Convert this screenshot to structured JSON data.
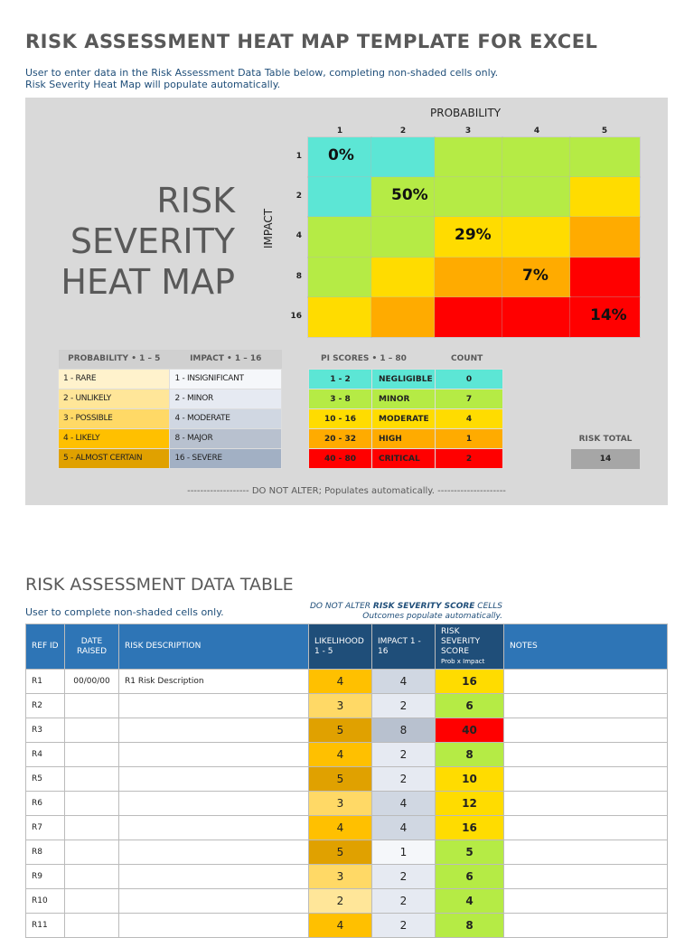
{
  "title": "RISK ASSESSMENT HEAT MAP TEMPLATE FOR EXCEL",
  "intro": [
    "User to enter data in the Risk Assessment Data Table below, completing non-shaded cells only.",
    "Risk Severity Heat Map will populate automatically."
  ],
  "heatmap": {
    "title_lines": [
      "RISK",
      "SEVERITY",
      "HEAT MAP"
    ],
    "x_label": "PROBABILITY",
    "y_label": "IMPACT",
    "probability": [
      "1",
      "2",
      "3",
      "4",
      "5"
    ],
    "impact": [
      "1",
      "2",
      "4",
      "8",
      "16"
    ],
    "colors": {
      "negligible": "#5ce6d5",
      "minor": "#b5eb45",
      "moderate": "#ffdc00",
      "high": "#ffab00",
      "critical": "#ff0000"
    },
    "grid": [
      [
        "negligible",
        "negligible",
        "minor",
        "minor",
        "minor"
      ],
      [
        "negligible",
        "minor",
        "minor",
        "minor",
        "moderate"
      ],
      [
        "minor",
        "minor",
        "moderate",
        "moderate",
        "high"
      ],
      [
        "minor",
        "moderate",
        "high",
        "high",
        "critical"
      ],
      [
        "moderate",
        "high",
        "critical",
        "critical",
        "critical"
      ]
    ],
    "percentages": [
      {
        "row": 0,
        "col": 0,
        "text": "0%"
      },
      {
        "row": 1,
        "col": 1,
        "text": "50%"
      },
      {
        "row": 2,
        "col": 2,
        "text": "29%"
      },
      {
        "row": 3,
        "col": 3,
        "text": "7%"
      },
      {
        "row": 4,
        "col": 4,
        "text": "14%"
      }
    ]
  },
  "legend": {
    "prob_header": "PROBABILITY  •  1 – 5",
    "impact_header": "IMPACT  •  1 – 16",
    "rows": [
      {
        "prob": "1 - RARE",
        "impact": "1 - INSIGNIFICANT",
        "pc": "#fff2cc",
        "ic": "#f5f7fa"
      },
      {
        "prob": "2 - UNLIKELY",
        "impact": "2 - MINOR",
        "pc": "#ffe699",
        "ic": "#e6eaf2"
      },
      {
        "prob": "3 - POSSIBLE",
        "impact": "4 - MODERATE",
        "pc": "#ffd966",
        "ic": "#d0d7e2"
      },
      {
        "prob": "4 - LIKELY",
        "impact": "8 - MAJOR",
        "pc": "#ffc000",
        "ic": "#b8c1cf"
      },
      {
        "prob": "5 - ALMOST CERTAIN",
        "impact": "16 - SEVERE",
        "pc": "#e0a100",
        "ic": "#a2b0c4"
      }
    ]
  },
  "scores": {
    "header": "PI SCORES  •  1 – 80",
    "count_header": "COUNT",
    "rows": [
      {
        "range": "1 - 2",
        "label": "NEGLIGIBLE",
        "count": "0",
        "color": "#5ce6d5"
      },
      {
        "range": "3 - 8",
        "label": "MINOR",
        "count": "7",
        "color": "#b5eb45"
      },
      {
        "range": "10 - 16",
        "label": "MODERATE",
        "count": "4",
        "color": "#ffdc00"
      },
      {
        "range": "20 - 32",
        "label": "HIGH",
        "count": "1",
        "color": "#ffab00"
      },
      {
        "range": "40 - 80",
        "label": "CRITICAL",
        "count": "2",
        "color": "#ff0000"
      }
    ],
    "risk_total_label": "RISK TOTAL",
    "risk_total": "14"
  },
  "do_not_alter": "-------------------   DO NOT ALTER; Populates automatically.   ---------------------",
  "table": {
    "title": "RISK ASSESSMENT DATA TABLE",
    "note": "User to complete non-shaded cells only.",
    "dna_1": "DO NOT ALTER ",
    "dna_bold": "RISK SEVERITY SCORE",
    "dna_2": " CELLS",
    "dna_line2": "Outcomes populate automatically.",
    "headers": {
      "ref": "REF ID",
      "date": "DATE RAISED",
      "desc": "RISK DESCRIPTION",
      "lik": "LIKELIHOOD 1 - 5",
      "imp": "IMPACT 1 - 16",
      "score": "RISK SEVERITY SCORE",
      "score_sub": "Prob  x  Impact",
      "notes": "NOTES"
    },
    "rows": [
      {
        "ref": "R1",
        "date": "00/00/00",
        "desc": "R1 Risk Description",
        "lik": "4",
        "imp": "4",
        "score": "16",
        "notes": ""
      },
      {
        "ref": "R2",
        "date": "",
        "desc": "",
        "lik": "3",
        "imp": "2",
        "score": "6",
        "notes": ""
      },
      {
        "ref": "R3",
        "date": "",
        "desc": "",
        "lik": "5",
        "imp": "8",
        "score": "40",
        "notes": ""
      },
      {
        "ref": "R4",
        "date": "",
        "desc": "",
        "lik": "4",
        "imp": "2",
        "score": "8",
        "notes": ""
      },
      {
        "ref": "R5",
        "date": "",
        "desc": "",
        "lik": "5",
        "imp": "2",
        "score": "10",
        "notes": ""
      },
      {
        "ref": "R6",
        "date": "",
        "desc": "",
        "lik": "3",
        "imp": "4",
        "score": "12",
        "notes": ""
      },
      {
        "ref": "R7",
        "date": "",
        "desc": "",
        "lik": "4",
        "imp": "4",
        "score": "16",
        "notes": ""
      },
      {
        "ref": "R8",
        "date": "",
        "desc": "",
        "lik": "5",
        "imp": "1",
        "score": "5",
        "notes": ""
      },
      {
        "ref": "R9",
        "date": "",
        "desc": "",
        "lik": "3",
        "imp": "2",
        "score": "6",
        "notes": ""
      },
      {
        "ref": "R10",
        "date": "",
        "desc": "",
        "lik": "2",
        "imp": "2",
        "score": "4",
        "notes": ""
      },
      {
        "ref": "R11",
        "date": "",
        "desc": "",
        "lik": "4",
        "imp": "2",
        "score": "8",
        "notes": ""
      }
    ]
  }
}
